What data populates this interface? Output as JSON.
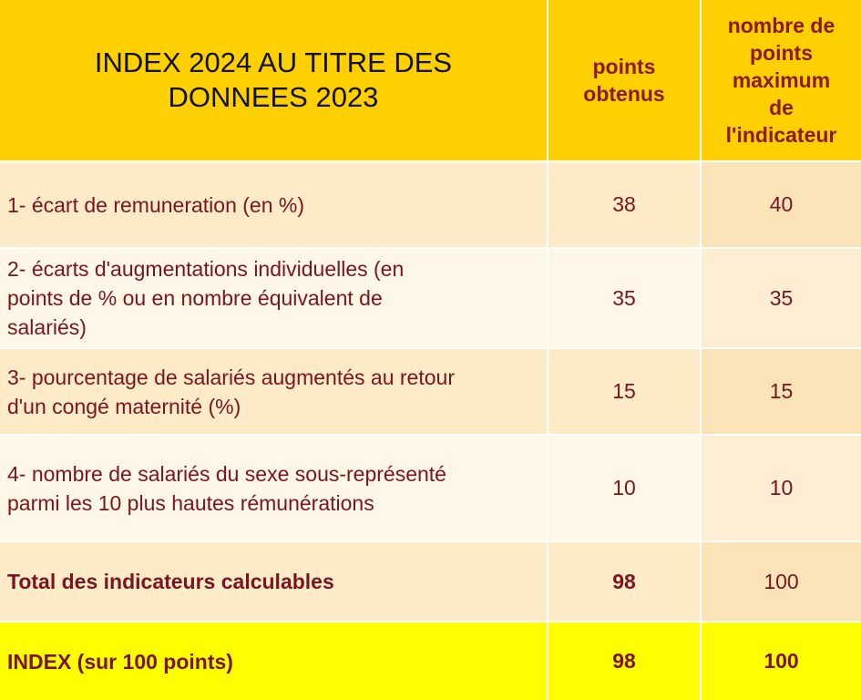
{
  "header": {
    "title_line1": "INDEX 2024 AU TITRE DES",
    "title_line2": "DONNEES 2023",
    "col_obtained_line1": "points",
    "col_obtained_line2": "obtenus",
    "col_max_line1": "nombre de",
    "col_max_line2": "points",
    "col_max_line3": "maximum",
    "col_max_line4": "de",
    "col_max_line5": "l'indicateur"
  },
  "rows": [
    {
      "label_lines": [
        "1- écart de remuneration (en %)"
      ],
      "obtained": "38",
      "max": "40"
    },
    {
      "label_lines": [
        "2- écarts d'augmentations individuelles (en",
        "points de % ou en nombre équivalent de",
        "salariés)"
      ],
      "obtained": "35",
      "max": "35"
    },
    {
      "label_lines": [
        "3- pourcentage de salariés augmentés au retour",
        "d'un congé maternité (%)"
      ],
      "obtained": "15",
      "max": "15"
    },
    {
      "label_lines": [
        "4- nombre de salariés du sexe sous-représenté",
        "parmi les 10 plus hautes rémunérations"
      ],
      "obtained": "10",
      "max": "10"
    }
  ],
  "total": {
    "label": "Total des indicateurs calculables",
    "obtained": "98",
    "max": "100"
  },
  "index": {
    "label": "INDEX (sur 100 points)",
    "obtained": "98",
    "max": "100"
  },
  "colors": {
    "header_bg": "#fed001",
    "row_bg_a": "#fdebc8",
    "row_bg_b": "#fef6e6",
    "index_bg": "#fefe00",
    "text_dark_red": "#7a1520"
  }
}
